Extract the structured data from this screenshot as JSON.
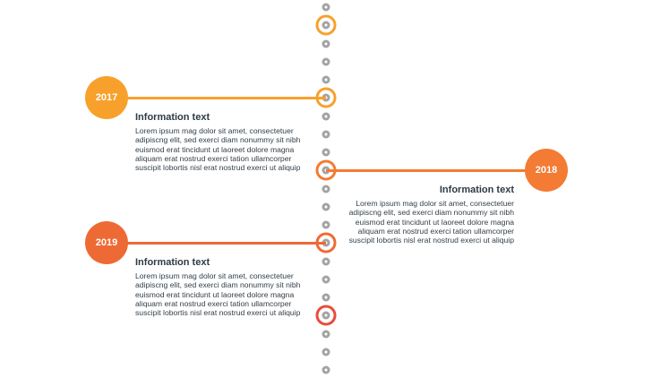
{
  "colors": {
    "dot": "#a3a3a3",
    "ring_2017": "#f7a12c",
    "ring_2018": "#f47b33",
    "ring_2019": "#ee6a35",
    "ring_extra": "#e84d3c",
    "bubble_2017": "#f7a12c",
    "bubble_2018": "#f47b33",
    "bubble_2019": "#ee6a35"
  },
  "events": [
    {
      "year": "2017",
      "title": "Information text",
      "body": "Lorem ipsum mag dolor sit amet, consectetuer adipiscng elit, sed exerci diam nonummy sit nibh euismod erat tincidunt ut laoreet dolore magna aliquam erat nostrud exerci tation ullamcorper suscipit lobortis nisl erat nostrud exerci ut aliquip"
    },
    {
      "year": "2018",
      "title": "Information text",
      "body": "Lorem ipsum mag dolor sit amet, consectetuer adipiscng elit, sed exerci diam nonummy sit nibh euismod erat tincidunt ut laoreet dolore magna aliquam erat nostrud exerci tation ullamcorper suscipit lobortis nisl erat nostrud exerci ut aliquip"
    },
    {
      "year": "2019",
      "title": "Information text",
      "body": "Lorem ipsum mag dolor sit amet, consectetuer adipiscng elit, sed exerci diam nonummy sit nibh euismod erat tincidunt ut laoreet dolore magna aliquam erat nostrud exerci tation ullamcorper suscipit lobortis nisl erat nostrud exerci ut aliquip"
    }
  ]
}
